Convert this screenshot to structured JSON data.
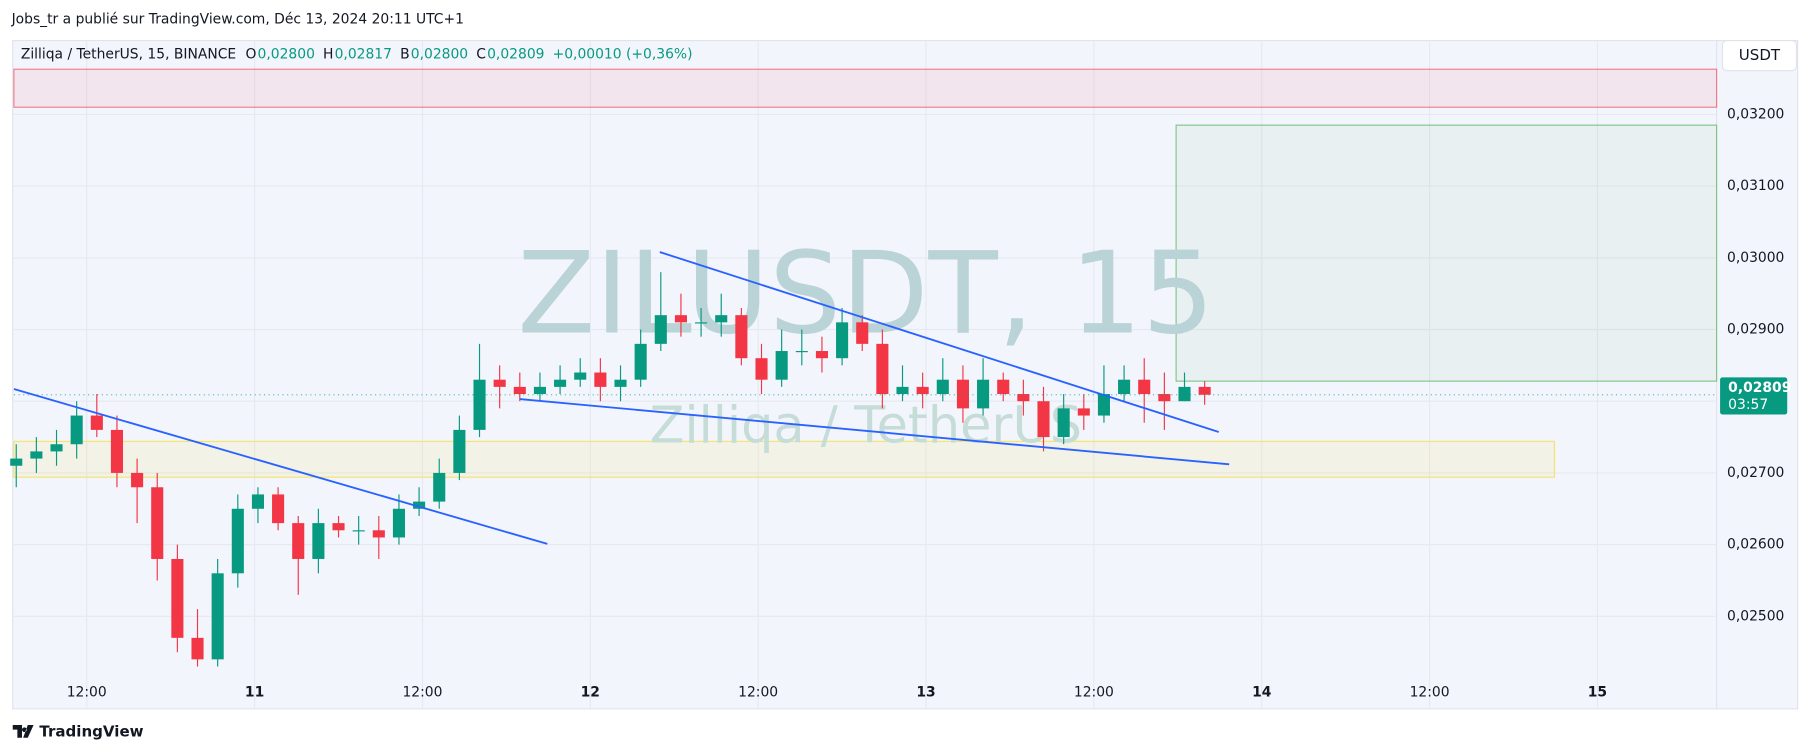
{
  "header": {
    "publisher": "Jobs_tr a publié sur TradingView.com, Déc 13, 2024 20:11 UTC+1"
  },
  "footer": {
    "brand": "TradingView"
  },
  "currency_button": "USDT",
  "chart_data": {
    "type": "candlestick",
    "symbol": "Zilliqa / TetherUS, 15, BINANCE",
    "ohlc_legend": [
      {
        "label": "O",
        "value": "0,02800"
      },
      {
        "label": "H",
        "value": "0,02817"
      },
      {
        "label": "B",
        "value": "0,02800"
      },
      {
        "label": "C",
        "value": "0,02809"
      }
    ],
    "change": "+0,00010 (+0,36%)",
    "watermark": "ZILUSDT, 15",
    "watermark_subtitle": "Zilliqa / TetherUS",
    "up_color": "#089981",
    "down_color": "#f23645",
    "grid": true,
    "x": [
      10.29,
      10.35,
      10.41,
      10.47,
      10.53,
      10.59,
      10.65,
      10.71,
      10.77,
      10.83,
      10.89,
      10.95,
      11.01,
      11.07,
      11.13,
      11.19,
      11.25,
      11.31,
      11.37,
      11.43,
      11.49,
      11.55,
      11.61,
      11.67,
      11.73,
      11.79,
      11.85,
      11.91,
      11.97,
      12.03,
      12.09,
      12.15,
      12.21,
      12.27,
      12.33,
      12.39,
      12.45,
      12.51,
      12.57,
      12.63,
      12.69,
      12.75,
      12.81,
      12.87,
      12.93,
      12.99,
      13.05,
      13.11,
      13.17,
      13.23,
      13.29,
      13.35,
      13.41,
      13.47,
      13.53,
      13.59,
      13.65,
      13.71,
      13.77,
      13.83
    ],
    "open": [
      0.0271,
      0.0272,
      0.0273,
      0.0274,
      0.0278,
      0.0276,
      0.027,
      0.0268,
      0.0258,
      0.0247,
      0.0244,
      0.0256,
      0.0265,
      0.0267,
      0.0263,
      0.0258,
      0.0263,
      0.0262,
      0.0262,
      0.0261,
      0.0265,
      0.0266,
      0.027,
      0.0276,
      0.0283,
      0.0282,
      0.0281,
      0.0282,
      0.0283,
      0.0284,
      0.0282,
      0.0283,
      0.0288,
      0.0292,
      0.0291,
      0.0291,
      0.0292,
      0.0286,
      0.0283,
      0.0287,
      0.0287,
      0.0286,
      0.0291,
      0.0288,
      0.0281,
      0.0282,
      0.0281,
      0.0283,
      0.0279,
      0.0283,
      0.0281,
      0.028,
      0.0275,
      0.0279,
      0.0278,
      0.0281,
      0.0283,
      0.0281,
      0.028,
      0.0282
    ],
    "high": [
      0.0274,
      0.0275,
      0.0276,
      0.028,
      0.0281,
      0.0278,
      0.0272,
      0.027,
      0.026,
      0.0251,
      0.0258,
      0.0267,
      0.0268,
      0.0268,
      0.0264,
      0.0265,
      0.0264,
      0.0264,
      0.0264,
      0.0267,
      0.0268,
      0.0272,
      0.0278,
      0.0288,
      0.0285,
      0.0284,
      0.0284,
      0.0285,
      0.0286,
      0.0286,
      0.0285,
      0.029,
      0.0298,
      0.0295,
      0.0293,
      0.0295,
      0.0293,
      0.0288,
      0.029,
      0.029,
      0.0289,
      0.0293,
      0.0292,
      0.029,
      0.0285,
      0.0284,
      0.0286,
      0.0285,
      0.0286,
      0.0284,
      0.0283,
      0.0282,
      0.0281,
      0.0281,
      0.0285,
      0.0285,
      0.0286,
      0.0284,
      0.0284,
      0.02828
    ],
    "low": [
      0.0268,
      0.027,
      0.0271,
      0.0272,
      0.0275,
      0.0268,
      0.0263,
      0.0255,
      0.0245,
      0.0243,
      0.0243,
      0.0254,
      0.0263,
      0.0262,
      0.0253,
      0.0256,
      0.0261,
      0.026,
      0.0258,
      0.026,
      0.0264,
      0.0265,
      0.0269,
      0.0275,
      0.0279,
      0.028,
      0.028,
      0.0281,
      0.0282,
      0.028,
      0.028,
      0.0282,
      0.0287,
      0.0289,
      0.0289,
      0.0289,
      0.0285,
      0.0281,
      0.0282,
      0.0285,
      0.0284,
      0.0285,
      0.0287,
      0.0279,
      0.028,
      0.0279,
      0.028,
      0.0277,
      0.0278,
      0.028,
      0.0278,
      0.0273,
      0.0274,
      0.0276,
      0.0277,
      0.028,
      0.0277,
      0.0276,
      0.028,
      0.02795
    ],
    "close": [
      0.0272,
      0.0273,
      0.0274,
      0.0278,
      0.0276,
      0.027,
      0.0268,
      0.0258,
      0.0247,
      0.0244,
      0.0256,
      0.0265,
      0.0267,
      0.0263,
      0.0258,
      0.0263,
      0.0262,
      0.0262,
      0.0261,
      0.0265,
      0.0266,
      0.027,
      0.0276,
      0.0283,
      0.0282,
      0.0281,
      0.0282,
      0.0283,
      0.0284,
      0.0282,
      0.0283,
      0.0288,
      0.0292,
      0.0291,
      0.0291,
      0.0292,
      0.0286,
      0.0283,
      0.0287,
      0.0287,
      0.0286,
      0.0291,
      0.0288,
      0.0281,
      0.0282,
      0.0281,
      0.0283,
      0.0279,
      0.0283,
      0.0281,
      0.028,
      0.0275,
      0.0279,
      0.0278,
      0.0281,
      0.0283,
      0.0281,
      0.028,
      0.0282,
      0.02809
    ],
    "xlim": [
      10.283,
      15.355
    ],
    "xticks": [
      {
        "value": 10.5,
        "label": "12:00"
      },
      11,
      {
        "value": 11.5,
        "label": "12:00"
      },
      12,
      {
        "value": 12.5,
        "label": "12:00"
      },
      13,
      {
        "value": 13.5,
        "label": "12:00"
      },
      14,
      {
        "value": 14.5,
        "label": "12:00"
      },
      15
    ],
    "ylim": [
      0.02371,
      0.03303
    ],
    "yticks": [
      {
        "value": 0.025,
        "label": "0,02500"
      },
      {
        "value": 0.026,
        "label": "0,02600"
      },
      {
        "value": 0.027,
        "label": "0,02700"
      },
      {
        "value": 0.028,
        "label": "0,02800"
      },
      {
        "value": 0.029,
        "label": "0,02900"
      },
      {
        "value": 0.03,
        "label": "0,03000"
      },
      {
        "value": 0.031,
        "label": "0,03100"
      },
      {
        "value": 0.032,
        "label": "0,03200"
      }
    ],
    "last_price": {
      "value": 0.02809,
      "label": "0,02809",
      "countdown": "03:57"
    },
    "resistance_zone": {
      "y": [
        0.0321,
        0.03263
      ],
      "color": "#f23645"
    },
    "target_box": {
      "x": [
        13.745,
        15.355
      ],
      "y": [
        0.02828,
        0.03185
      ],
      "color": "#66bb6a"
    },
    "support_zone": {
      "x": [
        10.283,
        14.872
      ],
      "y": [
        0.02694,
        0.02744
      ],
      "color": "#f5e04a"
    },
    "trendlines": [
      {
        "x": [
          10.283,
          11.872
        ],
        "y": [
          0.02817,
          0.02601
        ]
      },
      {
        "x": [
          12.207,
          13.872
        ],
        "y": [
          0.03008,
          0.02757
        ]
      },
      {
        "x": [
          11.79,
          13.903
        ],
        "y": [
          0.02803,
          0.02712
        ]
      }
    ],
    "trendline_color": "#2962ff"
  }
}
